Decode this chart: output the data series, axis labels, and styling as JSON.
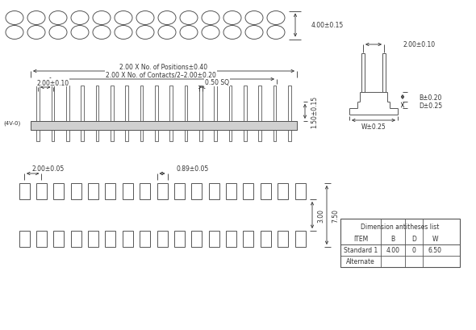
{
  "background": "#ffffff",
  "line_color": "#555555",
  "dim_color": "#333333",
  "table": {
    "title": "Dimension antitheses list",
    "headers": [
      "ITEM",
      "B",
      "D",
      "W"
    ],
    "rows": [
      [
        "Standard 1",
        "4.00",
        "0",
        "6.50"
      ],
      [
        "Alternate",
        "",
        "",
        ""
      ]
    ]
  },
  "dims_top": {
    "label_right": "4.00±0.15"
  },
  "dims_mid": {
    "label1": "2.00 X No. of Positions±0.40",
    "label2": "2.00 X No. of Contacts/2–2.00±0.20",
    "label3": "2.00±0.10",
    "label4": "0.50 SQ",
    "label5": "1.50±0.15"
  },
  "dims_bot": {
    "label1": "2.00±0.05",
    "label2": "0.89±0.05",
    "label3": "3.00",
    "label4": "7.50"
  },
  "dims_right": {
    "label1": "2.00±0.10",
    "label2": "B±0.20",
    "label3": "D±0.25",
    "label4": "W±0.25"
  }
}
